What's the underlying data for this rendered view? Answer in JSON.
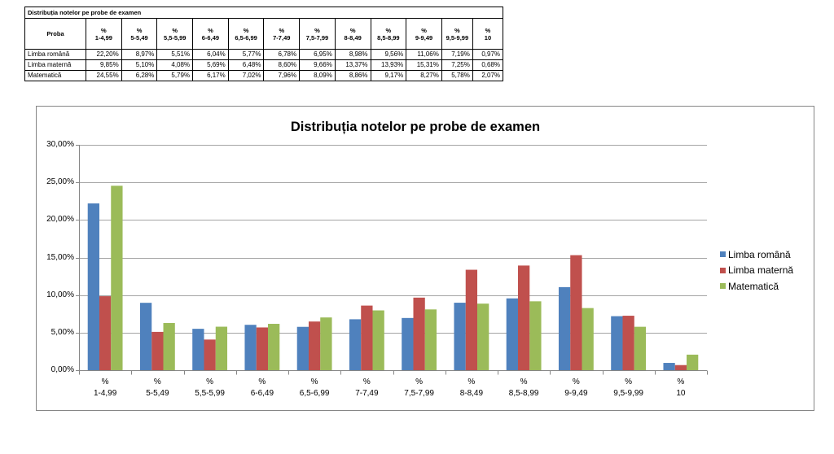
{
  "table": {
    "title": "Distribuția notelor pe probe de examen",
    "columns": [
      "Proba",
      "%\n1-4,99",
      "%\n5-5,49",
      "%\n5,5-5,99",
      "%\n6-6,49",
      "%\n6,5-6,99",
      "%\n7-7,49",
      "%\n7,5-7,99",
      "%\n8-8,49",
      "%\n8,5-8,99",
      "%\n9-9,49",
      "%\n9,5-9,99",
      "%\n10"
    ],
    "rows": [
      {
        "label": "Limba română",
        "values": [
          "22,20%",
          "8,97%",
          "5,51%",
          "6,04%",
          "5,77%",
          "6,78%",
          "6,95%",
          "8,98%",
          "9,56%",
          "11,06%",
          "7,19%",
          "0,97%"
        ]
      },
      {
        "label": "Limba maternă",
        "values": [
          "9,85%",
          "5,10%",
          "4,08%",
          "5,69%",
          "6,48%",
          "8,60%",
          "9,66%",
          "13,37%",
          "13,93%",
          "15,31%",
          "7,25%",
          "0,68%"
        ]
      },
      {
        "label": "Matematică",
        "values": [
          "24,55%",
          "6,28%",
          "5,79%",
          "6,17%",
          "7,02%",
          "7,96%",
          "8,09%",
          "8,86%",
          "9,17%",
          "8,27%",
          "5,78%",
          "2,07%"
        ]
      }
    ]
  },
  "chart_data": {
    "type": "bar",
    "title": "Distribuția notelor pe probe de examen",
    "categories": [
      "%\n1-4,99",
      "%\n5-5,49",
      "%\n5,5-5,99",
      "%\n6-6,49",
      "%\n6,5-6,99",
      "%\n7-7,49",
      "%\n7,5-7,99",
      "%\n8-8,49",
      "%\n8,5-8,99",
      "%\n9-9,49",
      "%\n9,5-9,99",
      "%\n10"
    ],
    "series": [
      {
        "name": "Limba română",
        "color": "#4F81BD",
        "values": [
          22.2,
          8.97,
          5.51,
          6.04,
          5.77,
          6.78,
          6.95,
          8.98,
          9.56,
          11.06,
          7.19,
          0.97
        ]
      },
      {
        "name": "Limba maternă",
        "color": "#C0504D",
        "values": [
          9.85,
          5.1,
          4.08,
          5.69,
          6.48,
          8.6,
          9.66,
          13.37,
          13.93,
          15.31,
          7.25,
          0.68
        ]
      },
      {
        "name": "Matematică",
        "color": "#9BBB59",
        "values": [
          24.55,
          6.28,
          5.79,
          6.17,
          7.02,
          7.96,
          8.09,
          8.86,
          9.17,
          8.27,
          5.78,
          2.07
        ]
      }
    ],
    "ylim": [
      0,
      30
    ],
    "yticks": [
      0,
      5,
      10,
      15,
      20,
      25,
      30
    ],
    "ytick_labels": [
      "0,00%",
      "5,00%",
      "10,00%",
      "15,00%",
      "20,00%",
      "25,00%",
      "30,00%"
    ],
    "grid": true,
    "legend": "right"
  }
}
